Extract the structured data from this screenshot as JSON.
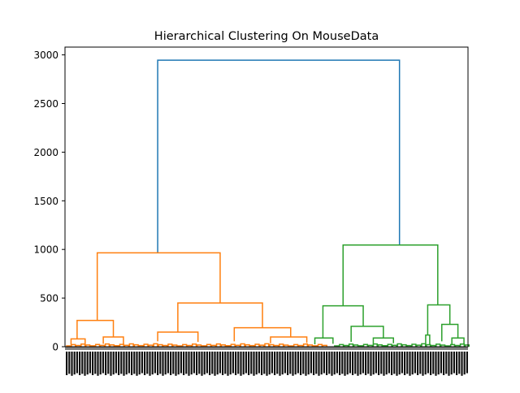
{
  "chart_data": {
    "type": "dendrogram",
    "title": "Hierarchical Clustering On MouseData",
    "xlabel": "",
    "ylabel": "",
    "ylim": [
      0,
      3080
    ],
    "y_ticks": [
      0,
      500,
      1000,
      1500,
      2000,
      2500,
      3000
    ],
    "x_tick_labels_note": "",
    "colors": {
      "root": "#1f77b4",
      "cluster_1": "#ff7f0e",
      "cluster_2": "#2ca02c"
    },
    "links": [
      {
        "cluster": "root",
        "left_x": 0.23,
        "right_x": 0.83,
        "left_height": 965,
        "right_height": 1045,
        "height": 2945
      },
      {
        "cluster": "cluster_1",
        "left_x": 0.08,
        "right_x": 0.385,
        "left_height": 270,
        "right_height": 450,
        "height": 965
      },
      {
        "cluster": "cluster_1",
        "left_x": 0.03,
        "right_x": 0.12,
        "left_height": 80,
        "right_height": 100,
        "height": 270
      },
      {
        "cluster": "cluster_1",
        "left_x": 0.28,
        "right_x": 0.49,
        "left_height": 150,
        "right_height": 195,
        "height": 450
      },
      {
        "cluster": "cluster_1",
        "left_x": 0.23,
        "right_x": 0.33,
        "left_height": 55,
        "right_height": 50,
        "height": 150
      },
      {
        "cluster": "cluster_1",
        "left_x": 0.42,
        "right_x": 0.56,
        "left_height": 55,
        "right_height": 100,
        "height": 195
      },
      {
        "cluster": "cluster_1",
        "left_x": 0.51,
        "right_x": 0.6,
        "left_height": 35,
        "right_height": 40,
        "height": 100
      },
      {
        "cluster": "cluster_1",
        "left_x": 0.095,
        "right_x": 0.145,
        "left_height": 30,
        "right_height": 25,
        "height": 100
      },
      {
        "cluster": "cluster_1",
        "left_x": 0.015,
        "right_x": 0.05,
        "left_height": 20,
        "right_height": 25,
        "height": 80
      },
      {
        "cluster": "cluster_2",
        "left_x": 0.69,
        "right_x": 0.925,
        "left_height": 420,
        "right_height": 430,
        "height": 1045
      },
      {
        "cluster": "cluster_2",
        "left_x": 0.64,
        "right_x": 0.74,
        "left_height": 90,
        "right_height": 210,
        "height": 420
      },
      {
        "cluster": "cluster_2",
        "left_x": 0.71,
        "right_x": 0.79,
        "left_height": 50,
        "right_height": 90,
        "height": 210
      },
      {
        "cluster": "cluster_2",
        "left_x": 0.9,
        "right_x": 0.955,
        "left_height": 120,
        "right_height": 230,
        "height": 430
      },
      {
        "cluster": "cluster_2",
        "left_x": 0.935,
        "right_x": 0.975,
        "left_height": 55,
        "right_height": 90,
        "height": 230
      },
      {
        "cluster": "cluster_2",
        "left_x": 0.62,
        "right_x": 0.665,
        "left_height": 25,
        "right_height": 30,
        "height": 90
      },
      {
        "cluster": "cluster_2",
        "left_x": 0.765,
        "right_x": 0.815,
        "left_height": 30,
        "right_height": 35,
        "height": 90
      },
      {
        "cluster": "cluster_2",
        "left_x": 0.96,
        "right_x": 0.99,
        "left_height": 20,
        "right_height": 25,
        "height": 90
      },
      {
        "cluster": "cluster_2",
        "left_x": 0.895,
        "right_x": 0.905,
        "left_height": 15,
        "right_height": 20,
        "height": 120
      }
    ]
  }
}
